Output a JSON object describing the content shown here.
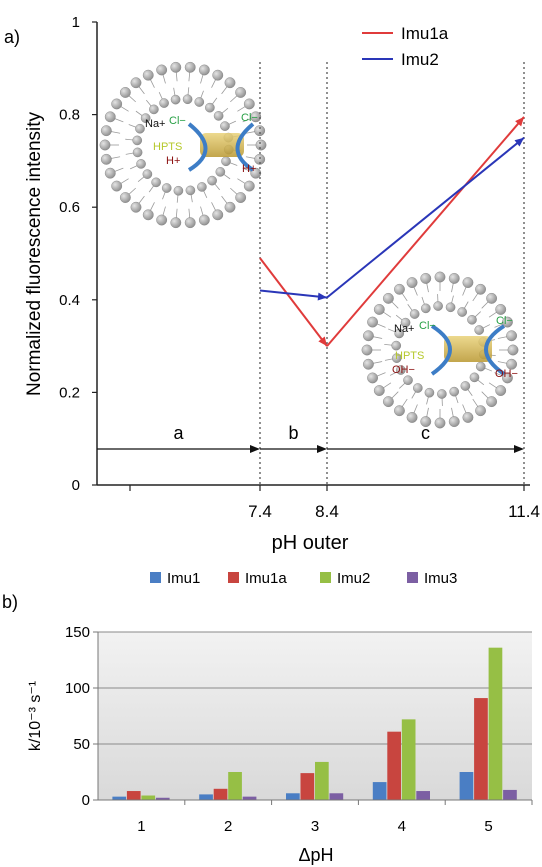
{
  "panels": {
    "a": "a)",
    "b": "b)"
  },
  "chart_data": [
    {
      "type": "line",
      "xlabel": "pH outer",
      "ylabel": "Normalized fluorescence intensity",
      "ylim": [
        0,
        1
      ],
      "yticks": [
        "0",
        "0.2",
        "0.4",
        "0.6",
        "0.8",
        "1"
      ],
      "xticks": [
        "7.4",
        "8.4",
        "11.4"
      ],
      "grid": false,
      "legend_position": "top-right",
      "series": [
        {
          "name": "Imu1a",
          "color": "#e03b3b",
          "x": [
            7.4,
            8.4,
            11.4
          ],
          "y": [
            0.49,
            0.3,
            0.795
          ]
        },
        {
          "name": "Imu2",
          "color": "#2a36b8",
          "x": [
            7.4,
            8.4,
            11.4
          ],
          "y": [
            0.42,
            0.405,
            0.75
          ]
        }
      ],
      "regions": [
        {
          "label": "a",
          "from": "start",
          "to": 7.4
        },
        {
          "label": "b",
          "from": 7.4,
          "to": 8.4
        },
        {
          "label": "c",
          "from": 8.4,
          "to": 11.4
        }
      ],
      "insets": [
        {
          "position": "top-left",
          "labels": {
            "cation": "Na+",
            "inner_anion": "Cl−",
            "dye": "HPTS",
            "proton_in": "H+",
            "outer_anion": "Cl−",
            "proton_out": "H+"
          }
        },
        {
          "position": "middle-right",
          "labels": {
            "cation": "Na+",
            "inner_anion": "Cl−",
            "dye": "HPTS",
            "hydroxide_in": "OH−",
            "outer_anion": "Cl−",
            "hydroxide_out": "OH−"
          }
        }
      ]
    },
    {
      "type": "bar",
      "xlabel": "ΔpH",
      "ylabel": "k/10⁻³ s⁻¹",
      "categories": [
        "1",
        "2",
        "3",
        "4",
        "5"
      ],
      "ylim": [
        0,
        150
      ],
      "yticks": [
        "0",
        "50",
        "100",
        "150"
      ],
      "grid": true,
      "legend_position": "top",
      "series": [
        {
          "name": "Imu1",
          "color": "#4a7ec4",
          "values": [
            3,
            5,
            6,
            16,
            25
          ]
        },
        {
          "name": "Imu1a",
          "color": "#c8453f",
          "values": [
            8,
            10,
            24,
            61,
            91
          ]
        },
        {
          "name": "Imu2",
          "color": "#96bf45",
          "values": [
            4,
            25,
            34,
            72,
            136
          ]
        },
        {
          "name": "Imu3",
          "color": "#7c5fa3",
          "values": [
            2,
            3,
            6,
            8,
            9
          ]
        }
      ]
    }
  ]
}
